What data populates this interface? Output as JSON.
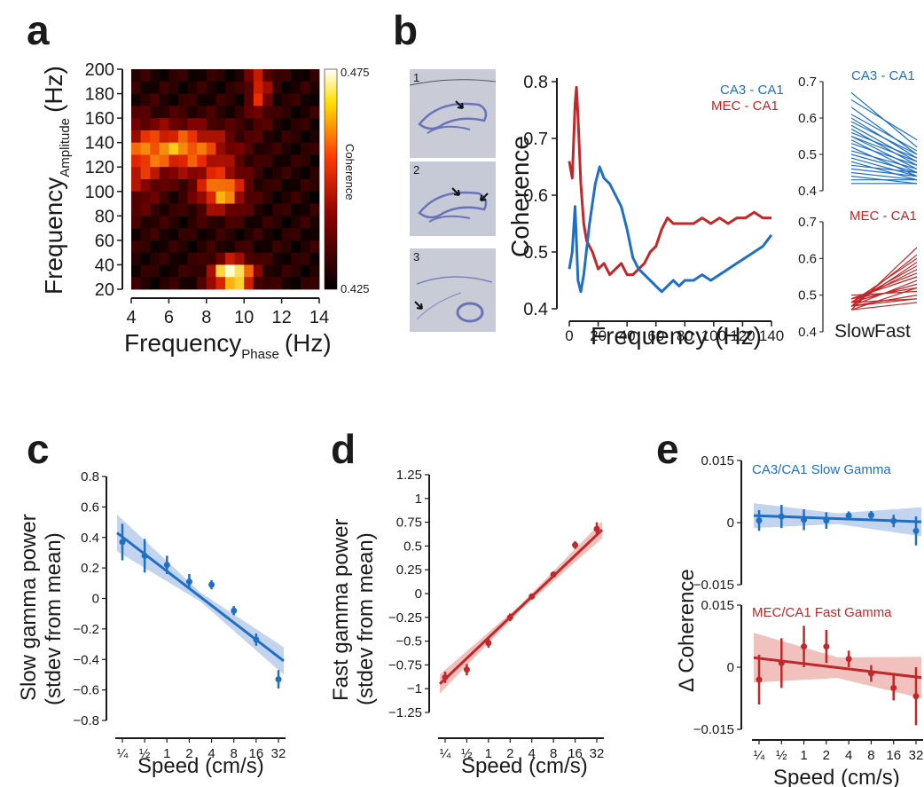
{
  "panel_labels": [
    "a",
    "b",
    "c",
    "d",
    "e"
  ],
  "colors": {
    "blue": "#1f6fc4",
    "red": "#c0282a",
    "blue_band": "#b8cdeb",
    "red_band": "#eeb6b3"
  },
  "panel_a": {
    "ylabel_main": "Frequency",
    "ylabel_sub": "Amplitude",
    "ylabel_unit": "(Hz)",
    "xlabel_main": "Frequency",
    "xlabel_sub": "Phase",
    "xlabel_unit": "(Hz)",
    "colorbar_label": "Coherence",
    "colorbar_max": "0.475",
    "colorbar_min": "0.425",
    "x_ticks": [
      "4",
      "6",
      "8",
      "10",
      "12",
      "14"
    ],
    "y_ticks": [
      "20",
      "40",
      "60",
      "80",
      "100",
      "120",
      "140",
      "160",
      "180",
      "200"
    ]
  },
  "panel_b": {
    "histology_numbers": [
      "1",
      "2",
      "3"
    ],
    "ylabel": "Coherence",
    "xlabel": "Frequency (Hz)",
    "legend": [
      "CA3 - CA1",
      "MEC - CA1"
    ],
    "x_ticks": [
      "0",
      "20",
      "40",
      "60",
      "80",
      "100",
      "120",
      "140"
    ],
    "y_ticks": [
      "0.4",
      "0.5",
      "0.6",
      "0.7",
      "0.8"
    ],
    "inset_titles": [
      "CA3 - CA1",
      "MEC - CA1"
    ],
    "inset_y_ticks": [
      "0.4",
      "0.5",
      "0.6",
      "0.7"
    ],
    "inset_x_labels": [
      "Slow",
      "Fast"
    ]
  },
  "panel_c": {
    "ylabel_line1": "Slow gamma power",
    "ylabel_line2": "(stdev from mean)",
    "xlabel": "Speed (cm/s)",
    "y_ticks": [
      "0.8",
      "0.6",
      "0.4",
      "0.2",
      "0",
      "−0.2",
      "−0.4",
      "−0.6",
      "−0.8"
    ],
    "x_ticks": [
      "¼",
      "½",
      "1",
      "2",
      "4",
      "8",
      "16",
      "32"
    ]
  },
  "panel_d": {
    "ylabel_line1": "Fast gamma power",
    "ylabel_line2": "(stdev from mean)",
    "xlabel": "Speed (cm/s)",
    "y_ticks": [
      "1.25",
      "1",
      "0.75",
      "0.5",
      "0.25",
      "0",
      "−0.25",
      "−0.5",
      "−0.75",
      "−1",
      "−1.25"
    ],
    "x_ticks": [
      "¼",
      "½",
      "1",
      "2",
      "4",
      "8",
      "16",
      "32"
    ]
  },
  "panel_e": {
    "ylabel": "Δ Coherence",
    "xlabel": "Speed (cm/s)",
    "top_title": "CA3/CA1 Slow Gamma",
    "bottom_title": "MEC/CA1 Fast Gamma",
    "top_y_ticks": [
      "0.015",
      "0",
      "−0.015"
    ],
    "bottom_y_ticks": [
      "0.015",
      "0",
      "−0.015"
    ],
    "x_ticks": [
      "¼",
      "½",
      "1",
      "2",
      "4",
      "8",
      "16",
      "32"
    ]
  },
  "chart_data": [
    {
      "id": "b_main",
      "type": "line",
      "xlabel": "Frequency (Hz)",
      "ylabel": "Coherence",
      "xlim": [
        0,
        140
      ],
      "ylim": [
        0.4,
        0.8
      ],
      "series": [
        {
          "name": "CA3 - CA1",
          "x": [
            0,
            2,
            4,
            6,
            8,
            10,
            14,
            18,
            21,
            24,
            28,
            32,
            36,
            40,
            44,
            48,
            52,
            56,
            60,
            64,
            68,
            72,
            76,
            80,
            86,
            92,
            98,
            104,
            110,
            116,
            122,
            128,
            134,
            140
          ],
          "y": [
            0.47,
            0.5,
            0.58,
            0.45,
            0.43,
            0.46,
            0.55,
            0.62,
            0.65,
            0.63,
            0.62,
            0.6,
            0.58,
            0.54,
            0.49,
            0.47,
            0.46,
            0.45,
            0.44,
            0.43,
            0.44,
            0.45,
            0.44,
            0.45,
            0.45,
            0.46,
            0.45,
            0.46,
            0.47,
            0.48,
            0.49,
            0.5,
            0.51,
            0.53
          ]
        },
        {
          "name": "MEC - CA1",
          "x": [
            0,
            2,
            4,
            5,
            6,
            8,
            10,
            12,
            16,
            20,
            24,
            28,
            32,
            36,
            40,
            44,
            48,
            52,
            56,
            60,
            64,
            68,
            72,
            76,
            80,
            86,
            92,
            98,
            104,
            110,
            116,
            122,
            128,
            134,
            140
          ],
          "y": [
            0.66,
            0.63,
            0.76,
            0.79,
            0.74,
            0.62,
            0.55,
            0.52,
            0.5,
            0.47,
            0.48,
            0.46,
            0.47,
            0.48,
            0.46,
            0.46,
            0.47,
            0.48,
            0.5,
            0.51,
            0.54,
            0.56,
            0.55,
            0.55,
            0.55,
            0.55,
            0.56,
            0.55,
            0.56,
            0.55,
            0.56,
            0.56,
            0.57,
            0.56,
            0.56
          ]
        }
      ]
    },
    {
      "id": "b_inset_ca3",
      "type": "line",
      "x_categories": [
        "Slow",
        "Fast"
      ],
      "ylim": [
        0.4,
        0.7
      ],
      "start": [
        0.67,
        0.65,
        0.63,
        0.61,
        0.6,
        0.59,
        0.58,
        0.57,
        0.56,
        0.55,
        0.55,
        0.54,
        0.53,
        0.52,
        0.51,
        0.5,
        0.49,
        0.48,
        0.47,
        0.46,
        0.45,
        0.44,
        0.43,
        0.42
      ],
      "end": [
        0.52,
        0.54,
        0.5,
        0.51,
        0.49,
        0.5,
        0.48,
        0.47,
        0.49,
        0.46,
        0.48,
        0.45,
        0.47,
        0.44,
        0.46,
        0.45,
        0.44,
        0.43,
        0.45,
        0.44,
        0.43,
        0.42,
        0.43,
        0.42
      ]
    },
    {
      "id": "b_inset_mec",
      "type": "line",
      "x_categories": [
        "Slow",
        "Fast"
      ],
      "ylim": [
        0.4,
        0.7
      ],
      "start": [
        0.46,
        0.47,
        0.47,
        0.48,
        0.48,
        0.48,
        0.49,
        0.49,
        0.47,
        0.46,
        0.48,
        0.5,
        0.47,
        0.48,
        0.49,
        0.46,
        0.47,
        0.48,
        0.49,
        0.47
      ],
      "end": [
        0.63,
        0.61,
        0.59,
        0.6,
        0.57,
        0.58,
        0.56,
        0.55,
        0.54,
        0.52,
        0.53,
        0.51,
        0.5,
        0.49,
        0.52,
        0.48,
        0.5,
        0.53,
        0.55,
        0.49
      ]
    },
    {
      "id": "c",
      "type": "scatter",
      "categories": [
        "¼",
        "½",
        "1",
        "2",
        "4",
        "8",
        "16",
        "32"
      ],
      "values": [
        0.37,
        0.28,
        0.22,
        0.11,
        0.09,
        -0.08,
        -0.27,
        -0.53
      ],
      "errors": [
        0.12,
        0.11,
        0.06,
        0.05,
        0.03,
        0.03,
        0.04,
        0.06
      ],
      "fit": [
        0.43,
        -0.41
      ],
      "ylim": [
        -0.8,
        0.8
      ]
    },
    {
      "id": "d",
      "type": "scatter",
      "categories": [
        "¼",
        "½",
        "1",
        "2",
        "4",
        "8",
        "16",
        "32"
      ],
      "values": [
        -0.88,
        -0.8,
        -0.52,
        -0.25,
        -0.03,
        0.2,
        0.51,
        0.68
      ],
      "errors": [
        0.06,
        0.06,
        0.05,
        0.04,
        0.03,
        0.03,
        0.04,
        0.07
      ],
      "fit": [
        -0.95,
        0.67
      ],
      "ylim": [
        -1.25,
        1.25
      ]
    },
    {
      "id": "e_top",
      "type": "scatter",
      "categories": [
        "¼",
        "½",
        "1",
        "2",
        "4",
        "8",
        "16",
        "32"
      ],
      "values": [
        0.0005,
        0.0015,
        0.0007,
        0.0005,
        0.0017,
        0.0018,
        0.0004,
        -0.002
      ],
      "errors": [
        0.0025,
        0.0028,
        0.0025,
        0.002,
        0.001,
        0.001,
        0.0015,
        0.0035
      ],
      "fit": [
        0.0017,
        0.0002
      ],
      "ylim": [
        -0.015,
        0.015
      ]
    },
    {
      "id": "e_bottom",
      "type": "scatter",
      "categories": [
        "¼",
        "½",
        "1",
        "2",
        "4",
        "8",
        "16",
        "32"
      ],
      "values": [
        -0.003,
        0.001,
        0.005,
        0.005,
        0.002,
        -0.0015,
        -0.005,
        -0.007
      ],
      "errors": [
        0.006,
        0.006,
        0.005,
        0.004,
        0.002,
        0.002,
        0.003,
        0.007
      ],
      "fit": [
        0.0023,
        -0.0025
      ],
      "ylim": [
        -0.015,
        0.015
      ]
    }
  ]
}
